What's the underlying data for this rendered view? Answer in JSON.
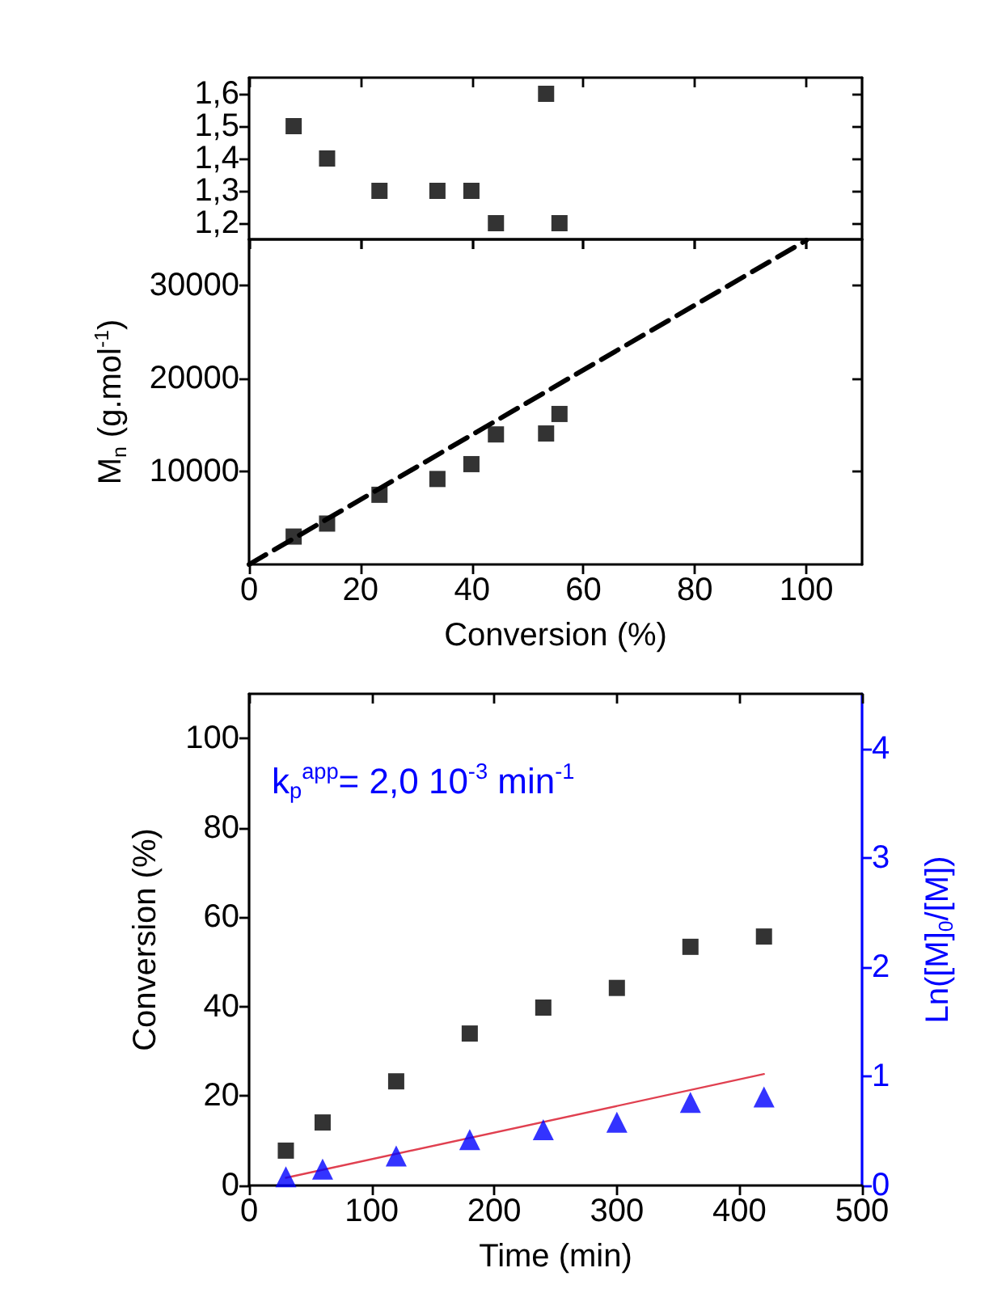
{
  "chart_data": [
    {
      "type": "scatter",
      "marker": "square",
      "tick_labels": "y",
      "x": [
        8,
        14,
        23.4,
        33.8,
        39.9,
        44.3,
        53.3,
        55.7
      ],
      "xlim": [
        0,
        110
      ],
      "xticks": [
        0,
        20,
        40,
        60,
        80,
        100
      ],
      "ylim": [
        1.15,
        1.65
      ],
      "yticks": [
        {
          "value": 1.2,
          "label": "1,2"
        },
        {
          "value": 1.3,
          "label": "1,3"
        },
        {
          "value": 1.4,
          "label": "1,4"
        },
        {
          "value": 1.5,
          "label": "1,5"
        },
        {
          "value": 1.6,
          "label": "1,6"
        }
      ],
      "series": [
        {
          "color": "#000000",
          "values": [
            1.5,
            1.4,
            1.3,
            1.3,
            1.3,
            1.2,
            1.6,
            1.2
          ]
        }
      ]
    },
    {
      "type": "scatter",
      "marker": "square",
      "xlabel": "Conversion (%)",
      "ylabel": "M$_{n}$ (g.mol$^{-1}$)",
      "x": [
        8,
        14,
        23.4,
        33.8,
        39.9,
        44.3,
        53.3,
        55.7
      ],
      "xlim": [
        0,
        110
      ],
      "xticks": [
        0,
        20,
        40,
        60,
        80,
        100
      ],
      "ylim": [
        0,
        35000
      ],
      "yticks": [
        10000,
        20000,
        30000
      ],
      "series": [
        {
          "color": "#000000",
          "values": [
            3000,
            4400,
            7500,
            9200,
            10800,
            14000,
            14100,
            16200
          ]
        },
        {
          "type": "line",
          "marker": "none",
          "line_style": "dashed",
          "color": "#000000",
          "x": [
            0,
            100
          ],
          "values": [
            0,
            34900
          ]
        }
      ]
    },
    {
      "type": "scatter",
      "xlabel": "Time (min)",
      "ylabel": "Conversion (%)",
      "y2label": "Ln([M]$_{0}$/[M])",
      "annotations": [
        "k$_{p}$$^{app}$= 2,0 10$^{-3}$ min$^{-1}$"
      ],
      "x": [
        30,
        60,
        120,
        180,
        240,
        300,
        360,
        420
      ],
      "xlim": [
        0,
        500
      ],
      "xticks": [
        0,
        100,
        200,
        300,
        400,
        500
      ],
      "ylim": [
        0,
        110
      ],
      "yticks": [
        0,
        20,
        40,
        60,
        80,
        100
      ],
      "y2lim": [
        0,
        4.5
      ],
      "y2ticks": [
        0,
        1,
        2,
        3,
        4
      ],
      "series": [
        {
          "marker": "square",
          "color": "#000000",
          "values": [
            7.8,
            14.1,
            23.3,
            34,
            39.8,
            44.2,
            53.4,
            55.7
          ]
        },
        {
          "marker": "triangle",
          "axis": "y2",
          "color": "#0000ff",
          "values": [
            0.08,
            0.15,
            0.27,
            0.42,
            0.51,
            0.58,
            0.76,
            0.81
          ]
        },
        {
          "type": "line",
          "marker": "none",
          "axis": "y2",
          "color": "#e04050",
          "x": [
            30,
            420
          ],
          "values": [
            0.07,
            1.02
          ]
        }
      ]
    }
  ]
}
